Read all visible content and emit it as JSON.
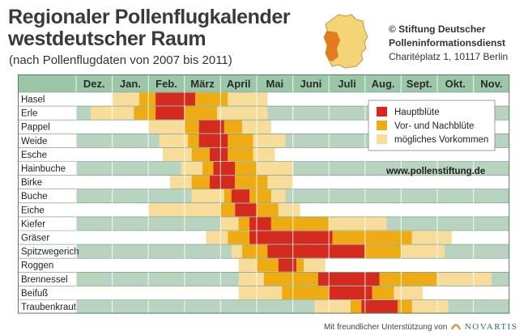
{
  "header": {
    "title_line1": "Regionaler Pollenflugkalender",
    "title_line2": "westdeutscher Raum",
    "subtitle": "(nach Pollenflugdaten von 2007 bis 2011)"
  },
  "org": {
    "line1": "© Stiftung Deutscher",
    "line2": "Polleninformationsdienst",
    "line3": "Charitéplatz 1, 10117 Berlin"
  },
  "footer": {
    "text": "Mit freundlicher Unterstützung von",
    "sponsor": "NOVARTIS"
  },
  "colors": {
    "haupt": "#d52a1e",
    "vornach": "#eeac12",
    "moeglich": "#f7dc9a",
    "row_green": "#b8d4c0",
    "row_white": "#ffffff",
    "header_green": "#9bc7a8",
    "label_bg": "#ffffff"
  },
  "chart_data": {
    "type": "table",
    "months": [
      "Dez.",
      "Jan.",
      "Feb.",
      "März",
      "April",
      "Mai",
      "Juni",
      "Juli",
      "Aug.",
      "Sept.",
      "Okt.",
      "Nov."
    ],
    "legend": [
      {
        "key": "haupt",
        "label": "Hauptblüte"
      },
      {
        "key": "vornach",
        "label": "Vor- und Nachblüte"
      },
      {
        "key": "moeglich",
        "label": "mögliches Vorkommen"
      }
    ],
    "website": "www.pollenstiftung.de",
    "plants": [
      {
        "name": "Hasel",
        "segments": [
          [
            1.0,
            1.75,
            "moeglich"
          ],
          [
            1.75,
            2.2,
            "vornach"
          ],
          [
            2.2,
            3.3,
            "haupt"
          ],
          [
            3.3,
            4.2,
            "vornach"
          ],
          [
            4.2,
            5.3,
            "moeglich"
          ]
        ]
      },
      {
        "name": "Erle",
        "segments": [
          [
            0.4,
            1.6,
            "moeglich"
          ],
          [
            1.6,
            2.2,
            "vornach"
          ],
          [
            2.2,
            3.0,
            "haupt"
          ],
          [
            3.0,
            3.9,
            "vornach"
          ],
          [
            3.9,
            5.3,
            "moeglich"
          ]
        ]
      },
      {
        "name": "Pappel",
        "segments": [
          [
            2.0,
            3.0,
            "moeglich"
          ],
          [
            3.0,
            3.4,
            "vornach"
          ],
          [
            3.4,
            4.1,
            "haupt"
          ],
          [
            4.1,
            4.6,
            "vornach"
          ],
          [
            4.6,
            5.4,
            "moeglich"
          ]
        ]
      },
      {
        "name": "Weide",
        "segments": [
          [
            2.3,
            3.1,
            "moeglich"
          ],
          [
            3.1,
            3.4,
            "vornach"
          ],
          [
            3.4,
            4.2,
            "haupt"
          ],
          [
            4.2,
            4.9,
            "vornach"
          ],
          [
            4.9,
            5.8,
            "moeglich"
          ]
        ]
      },
      {
        "name": "Esche",
        "segments": [
          [
            2.4,
            3.2,
            "moeglich"
          ],
          [
            3.2,
            3.7,
            "vornach"
          ],
          [
            3.7,
            4.2,
            "haupt"
          ],
          [
            4.2,
            4.9,
            "vornach"
          ],
          [
            4.9,
            5.5,
            "moeglich"
          ]
        ]
      },
      {
        "name": "Hainbuche",
        "segments": [
          [
            2.9,
            3.5,
            "moeglich"
          ],
          [
            3.5,
            3.8,
            "vornach"
          ],
          [
            3.8,
            4.4,
            "haupt"
          ],
          [
            4.4,
            5.0,
            "vornach"
          ],
          [
            5.0,
            6.0,
            "moeglich"
          ]
        ]
      },
      {
        "name": "Birke",
        "segments": [
          [
            2.6,
            3.2,
            "moeglich"
          ],
          [
            3.2,
            3.7,
            "vornach"
          ],
          [
            3.7,
            4.4,
            "haupt"
          ],
          [
            4.4,
            5.3,
            "vornach"
          ],
          [
            5.3,
            6.0,
            "moeglich"
          ]
        ]
      },
      {
        "name": "Buche",
        "segments": [
          [
            3.2,
            4.1,
            "moeglich"
          ],
          [
            4.1,
            4.3,
            "vornach"
          ],
          [
            4.3,
            4.8,
            "haupt"
          ],
          [
            4.8,
            5.4,
            "vornach"
          ],
          [
            5.4,
            5.8,
            "moeglich"
          ]
        ]
      },
      {
        "name": "Eiche",
        "segments": [
          [
            2.0,
            4.0,
            "moeglich"
          ],
          [
            4.0,
            4.4,
            "vornach"
          ],
          [
            4.4,
            5.0,
            "haupt"
          ],
          [
            5.0,
            5.6,
            "vornach"
          ],
          [
            5.6,
            6.2,
            "moeglich"
          ]
        ]
      },
      {
        "name": "Kiefer",
        "segments": [
          [
            4.0,
            4.5,
            "moeglich"
          ],
          [
            4.5,
            4.8,
            "vornach"
          ],
          [
            4.8,
            5.4,
            "haupt"
          ],
          [
            5.4,
            7.0,
            "vornach"
          ],
          [
            7.0,
            8.6,
            "moeglich"
          ]
        ]
      },
      {
        "name": "Gräser",
        "segments": [
          [
            3.6,
            4.2,
            "moeglich"
          ],
          [
            4.2,
            4.8,
            "vornach"
          ],
          [
            4.8,
            7.1,
            "haupt"
          ],
          [
            7.1,
            9.3,
            "vornach"
          ],
          [
            9.3,
            10.4,
            "moeglich"
          ]
        ]
      },
      {
        "name": "Spitzwegerich",
        "segments": [
          [
            4.3,
            4.6,
            "moeglich"
          ],
          [
            4.6,
            5.3,
            "vornach"
          ],
          [
            5.3,
            8.0,
            "haupt"
          ],
          [
            8.0,
            9.0,
            "vornach"
          ],
          [
            9.0,
            10.2,
            "moeglich"
          ]
        ]
      },
      {
        "name": "Roggen",
        "segments": [
          [
            4.5,
            5.0,
            "moeglich"
          ],
          [
            5.0,
            5.6,
            "vornach"
          ],
          [
            5.6,
            6.1,
            "haupt"
          ],
          [
            6.1,
            6.3,
            "vornach"
          ],
          [
            6.3,
            6.9,
            "moeglich"
          ]
        ]
      },
      {
        "name": "Brennessel",
        "segments": [
          [
            4.5,
            5.2,
            "moeglich"
          ],
          [
            5.2,
            6.7,
            "vornach"
          ],
          [
            6.7,
            8.4,
            "haupt"
          ],
          [
            8.4,
            10.0,
            "vornach"
          ],
          [
            10.0,
            11.5,
            "moeglich"
          ]
        ]
      },
      {
        "name": "Beifuß",
        "segments": [
          [
            4.5,
            5.7,
            "moeglich"
          ],
          [
            5.7,
            7.0,
            "vornach"
          ],
          [
            7.0,
            8.2,
            "haupt"
          ],
          [
            8.2,
            8.8,
            "vornach"
          ],
          [
            8.8,
            9.6,
            "moeglich"
          ]
        ]
      },
      {
        "name": "Traubenkraut",
        "segments": [
          [
            6.6,
            7.6,
            "moeglich"
          ],
          [
            7.6,
            7.9,
            "vornach"
          ],
          [
            7.9,
            8.9,
            "haupt"
          ],
          [
            8.9,
            9.3,
            "vornach"
          ],
          [
            9.3,
            10.3,
            "moeglich"
          ]
        ]
      }
    ]
  }
}
